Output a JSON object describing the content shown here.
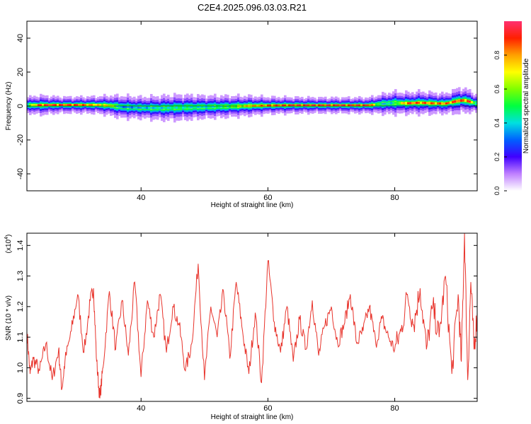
{
  "title": "C2E4.2025.096.03.03.R21",
  "chart_data": [
    {
      "type": "heatmap",
      "xlabel": "Height of straight line (km)",
      "ylabel": "Frequency (Hz)",
      "xlim": [
        22,
        93
      ],
      "ylim": [
        -50,
        50
      ],
      "xticks": [
        40,
        60,
        80
      ],
      "yticks": [
        -40,
        -20,
        0,
        20,
        40
      ],
      "ridge": {
        "x": [
          22,
          24,
          27,
          30,
          33,
          35,
          37,
          40,
          43,
          46,
          50,
          54,
          57,
          60,
          64,
          68,
          72,
          76,
          78,
          80,
          82,
          84,
          86,
          88,
          90,
          91,
          92,
          93
        ],
        "center": [
          0.5,
          0.5,
          0.6,
          0.6,
          0.6,
          0.3,
          -0.6,
          -1.0,
          -1.2,
          -0.9,
          -0.6,
          -0.3,
          0.1,
          0.3,
          0.4,
          0.4,
          0.4,
          0.4,
          1.2,
          1.8,
          1.6,
          1.9,
          1.6,
          1.4,
          3.0,
          3.4,
          2.4,
          1.4
        ],
        "halfwidth": [
          2.2,
          2.8,
          2.3,
          2.3,
          2.4,
          2.8,
          3.2,
          3.0,
          3.4,
          3.6,
          3.2,
          3.0,
          2.8,
          2.4,
          2.3,
          2.2,
          2.2,
          2.2,
          2.8,
          3.2,
          3.0,
          3.2,
          3.0,
          2.8,
          3.6,
          3.4,
          3.0,
          2.4
        ],
        "amplitude": [
          0.5,
          0.98,
          0.95,
          0.95,
          0.8,
          0.75,
          0.35,
          0.4,
          0.45,
          0.5,
          0.45,
          0.55,
          0.8,
          0.9,
          0.98,
          0.98,
          0.98,
          0.98,
          0.4,
          0.5,
          0.95,
          0.9,
          0.9,
          0.9,
          0.95,
          0.9,
          0.95,
          0.3
        ]
      },
      "colorbar": {
        "label": "Normalized spectral amplitude",
        "range": [
          0.0,
          1.0
        ],
        "ticks": [
          "0.0",
          "0.2",
          "0.4",
          "0.6",
          "0.8"
        ],
        "tick_values": [
          0.0,
          0.2,
          0.4,
          0.6,
          0.8
        ]
      }
    },
    {
      "type": "line",
      "xlabel": "Height of straight line (km)",
      "ylabel": "SNR (10 * v/v)",
      "y_multiplier": "(x10",
      "y_multiplier_exp": "4",
      "y_multiplier_close": ")",
      "xlim": [
        22,
        93
      ],
      "ylim": [
        0.89,
        1.44
      ],
      "xticks": [
        40,
        60,
        80
      ],
      "yticks": [
        "0.9",
        "1.0",
        "1.1",
        "1.2",
        "1.3",
        "1.4"
      ],
      "ytick_values": [
        0.9,
        1.0,
        1.1,
        1.2,
        1.3,
        1.4
      ],
      "series": [
        {
          "name": "SNR",
          "color": "#e8332b",
          "x": [
            22,
            22.5,
            23,
            24,
            25,
            26,
            27,
            27.5,
            28,
            29,
            30,
            31,
            32,
            32.5,
            33,
            33.5,
            34,
            35,
            36,
            37,
            38,
            39,
            40,
            41,
            42,
            43,
            44,
            45,
            46,
            47,
            48,
            49,
            50,
            51,
            52,
            53,
            54,
            55,
            56,
            57,
            58,
            59,
            60,
            61,
            62,
            63,
            64,
            65,
            66,
            67,
            68,
            69,
            70,
            71,
            72,
            73,
            74,
            75,
            76,
            77,
            78,
            79,
            80,
            81,
            82,
            83,
            84,
            85,
            86,
            87,
            88,
            89,
            90,
            90.5,
            91,
            91.5,
            92,
            92.5,
            93
          ],
          "y": [
            1.12,
            0.98,
            1.03,
            0.99,
            1.08,
            0.96,
            1.06,
            0.93,
            1.02,
            1.12,
            1.24,
            1.05,
            1.22,
            1.26,
            1.02,
            0.9,
            1.0,
            1.25,
            1.06,
            1.22,
            1.04,
            1.28,
            0.97,
            1.22,
            1.1,
            1.24,
            1.05,
            1.2,
            1.14,
            0.99,
            1.08,
            1.34,
            0.96,
            1.2,
            1.1,
            1.25,
            1.03,
            1.28,
            1.12,
            0.98,
            1.18,
            0.95,
            1.35,
            1.15,
            1.05,
            1.2,
            1.02,
            1.16,
            1.06,
            1.22,
            1.04,
            1.14,
            1.2,
            1.08,
            1.14,
            1.24,
            1.08,
            1.12,
            1.2,
            1.08,
            1.16,
            1.1,
            1.06,
            1.12,
            1.24,
            1.14,
            1.26,
            1.06,
            1.2,
            1.1,
            1.3,
            0.98,
            1.24,
            1.02,
            1.44,
            0.96,
            1.28,
            1.06,
            1.18
          ]
        }
      ]
    }
  ]
}
